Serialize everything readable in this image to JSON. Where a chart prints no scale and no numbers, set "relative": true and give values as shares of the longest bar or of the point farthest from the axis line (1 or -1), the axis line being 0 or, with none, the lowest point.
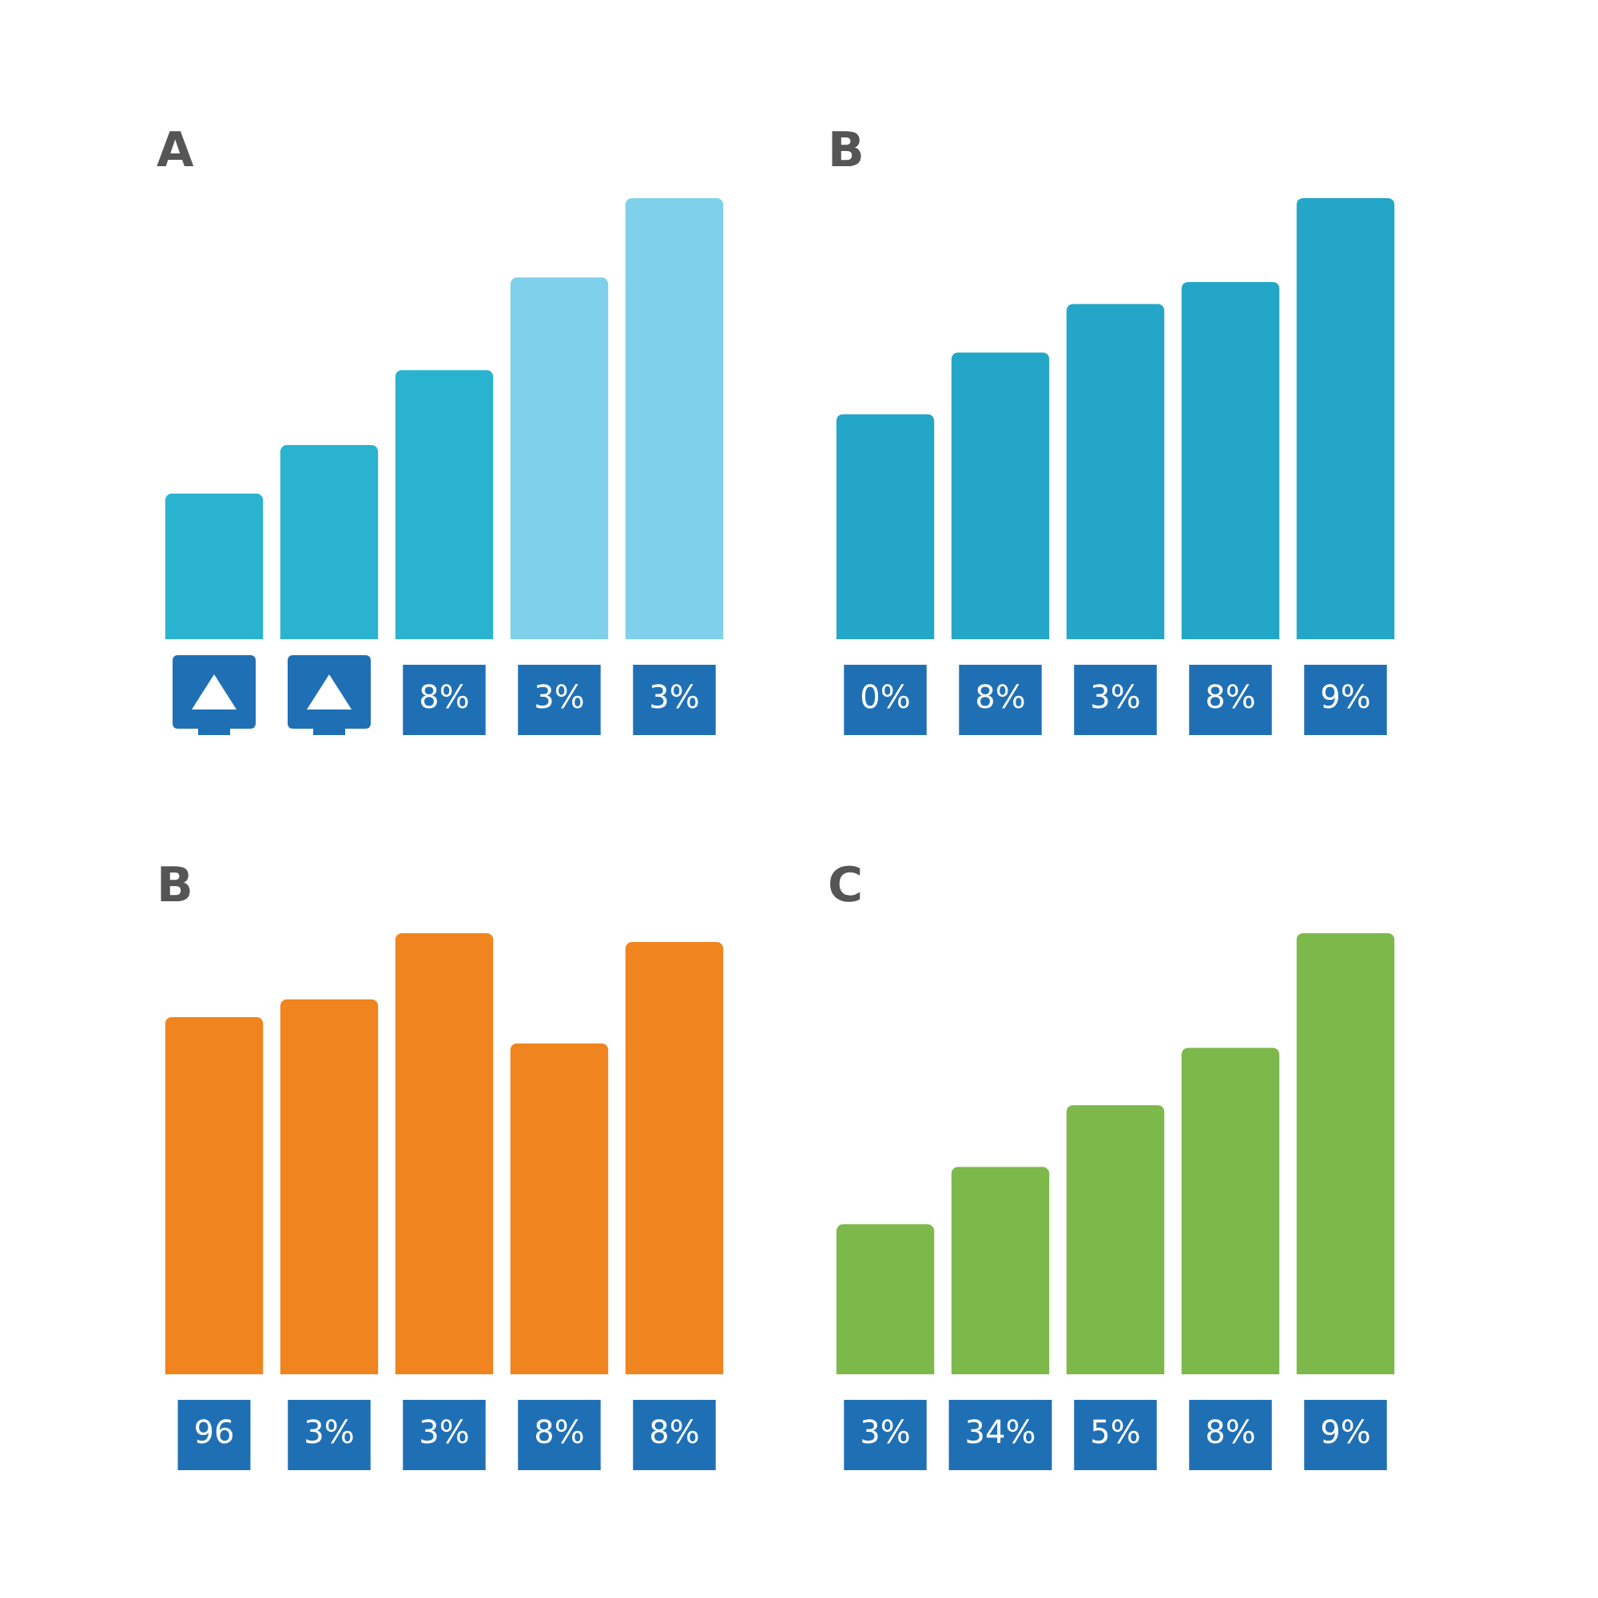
{
  "chart_data": [
    {
      "type": "bar",
      "title": "A",
      "categories": [
        null,
        null,
        "8%",
        "3%",
        "3%"
      ],
      "values": [
        0.33,
        0.44,
        0.61,
        0.82,
        1
      ],
      "colors": [
        "#2ab3cf",
        "#2ab3cf",
        "#2ab3cf",
        "#7fd0ea",
        "#7fd0ea"
      ],
      "relative": true
    },
    {
      "type": "bar",
      "title": "B",
      "categories": [
        "0%",
        "8%",
        "3%",
        "8%",
        "9%"
      ],
      "values": [
        0.51,
        0.65,
        0.76,
        0.81,
        1
      ],
      "color": "#23a6c8",
      "relative": true
    },
    {
      "type": "bar",
      "title": "B",
      "categories": [
        "96",
        "3%",
        "3%",
        "8%",
        "8%"
      ],
      "values": [
        0.81,
        0.85,
        1,
        0.75,
        0.98
      ],
      "color": "#f0841f",
      "relative": true
    },
    {
      "type": "bar",
      "title": "C",
      "categories": [
        "3%",
        "34%",
        "5%",
        "8%",
        "9%"
      ],
      "values": [
        0.34,
        0.47,
        0.61,
        0.74,
        1
      ],
      "color": "#7cb84a",
      "relative": true
    }
  ]
}
